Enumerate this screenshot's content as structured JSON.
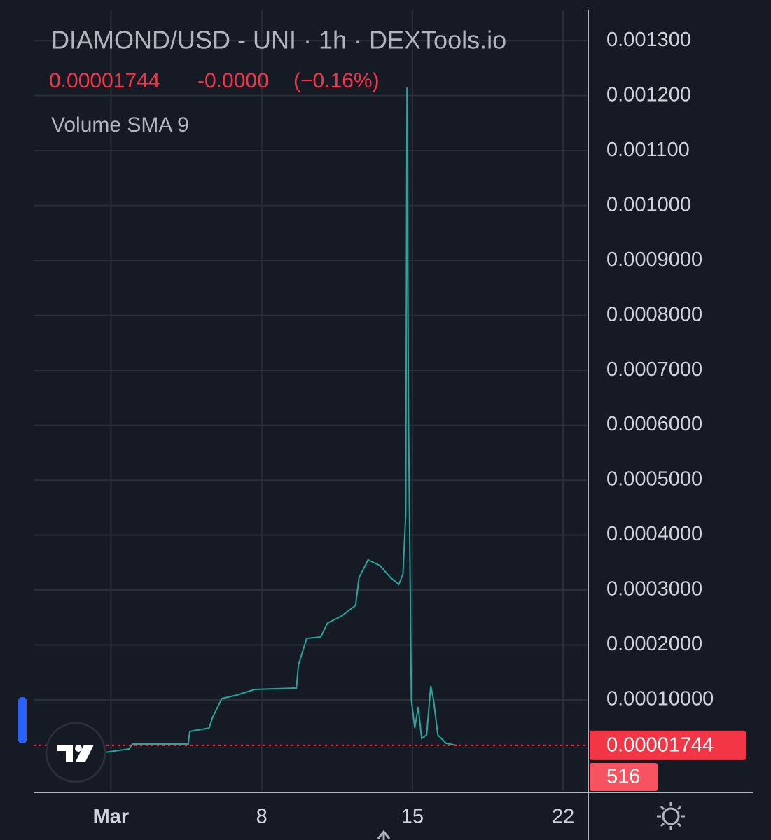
{
  "chart_data": {
    "type": "line",
    "title": "DIAMOND/USD - UNI · 1h · DEXTools.io",
    "last_price": 1.744e-05,
    "change": "-0.0000",
    "change_percent": "(−0.16%)",
    "indicator": "Volume SMA 9",
    "volume_value": 516,
    "x": [
      0.71,
      1.84,
      2.0,
      4.59,
      4.66,
      5.56,
      5.72,
      6.15,
      6.86,
      7.67,
      9.61,
      9.71,
      10.09,
      10.74,
      11.06,
      11.71,
      12.36,
      12.52,
      12.94,
      13.49,
      13.98,
      14.37,
      14.56,
      14.69,
      14.75,
      14.82,
      14.95,
      15.11,
      15.27,
      15.43,
      15.66,
      15.85,
      15.98,
      16.18,
      16.57,
      17.05
    ],
    "series": [
      {
        "color": "#26a69a",
        "values": [
          4.5e-06,
          1.08e-05,
          1.97e-05,
          1.97e-05,
          4.27e-05,
          4.9e-05,
          6.82e-05,
          0.0001026,
          0.0001089,
          0.0001191,
          0.0001217,
          0.0001637,
          0.0002121,
          0.0002147,
          0.0002401,
          0.0002529,
          0.000272,
          0.000323,
          0.0003548,
          0.0003446,
          0.000323,
          0.0003102,
          0.0003293,
          0.0004376,
          0.0012147,
          0.0006096,
          0.0001,
          4.9e-05,
          8.73e-05,
          2.99e-05,
          3.63e-05,
          0.0001255,
          0.0001,
          3.63e-05,
          2.1e-05,
          1.72e-05
        ]
      }
    ],
    "price_line_color": "#f23645",
    "xlim": [
      -2.59,
      23.1
    ],
    "xticks": [
      {
        "value": 1,
        "label": "Mar"
      },
      8,
      15,
      22
    ],
    "ylim": [
      -6.56e-05,
      0.001355
    ],
    "yticks": [
      {
        "value": 0.0001,
        "label": "0.00010000"
      },
      {
        "value": 0.0002,
        "label": "0.0002000"
      },
      {
        "value": 0.0003,
        "label": "0.0003000"
      },
      {
        "value": 0.0004,
        "label": "0.0004000"
      },
      {
        "value": 0.0005,
        "label": "0.0005000"
      },
      {
        "value": 0.0006,
        "label": "0.0006000"
      },
      {
        "value": 0.0007,
        "label": "0.0007000"
      },
      {
        "value": 0.0008,
        "label": "0.0008000"
      },
      {
        "value": 0.0009,
        "label": "0.0009000"
      },
      {
        "value": 0.001,
        "label": "0.001000"
      },
      {
        "value": 0.0011,
        "label": "0.001100"
      },
      {
        "value": 0.0012,
        "label": "0.001200"
      },
      {
        "value": 0.0013,
        "label": "0.001300"
      }
    ],
    "grid": true
  }
}
